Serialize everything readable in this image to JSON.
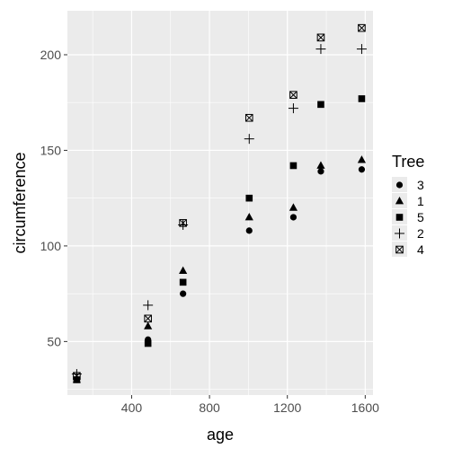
{
  "chart_data": {
    "type": "scatter",
    "title": "",
    "xlabel": "age",
    "ylabel": "circumference",
    "xlim": [
      70,
      1640
    ],
    "ylim": [
      22,
      223
    ],
    "xticks": [
      400,
      800,
      1200,
      1600
    ],
    "yticks": [
      50,
      100,
      150,
      200
    ],
    "grid": true,
    "legend": {
      "title": "Tree",
      "placement": "right"
    },
    "x": [
      118,
      484,
      664,
      1004,
      1231,
      1372,
      1582
    ],
    "series": [
      {
        "name": "3",
        "shape": "circle",
        "values": [
          30,
          51,
          75,
          108,
          115,
          139,
          140
        ]
      },
      {
        "name": "1",
        "shape": "triangle",
        "values": [
          30,
          58,
          87,
          115,
          120,
          142,
          145
        ]
      },
      {
        "name": "5",
        "shape": "square",
        "values": [
          30,
          49,
          81,
          125,
          142,
          174,
          177
        ]
      },
      {
        "name": "2",
        "shape": "plus",
        "values": [
          33,
          69,
          111,
          156,
          172,
          203,
          203
        ]
      },
      {
        "name": "4",
        "shape": "boxx",
        "values": [
          32,
          62,
          112,
          167,
          179,
          209,
          214
        ]
      }
    ],
    "colors": {
      "panel": "#ebebeb",
      "grid": "#ffffff",
      "marks": "#000000",
      "text": "#000000",
      "tick_text": "#4d4d4d"
    }
  }
}
